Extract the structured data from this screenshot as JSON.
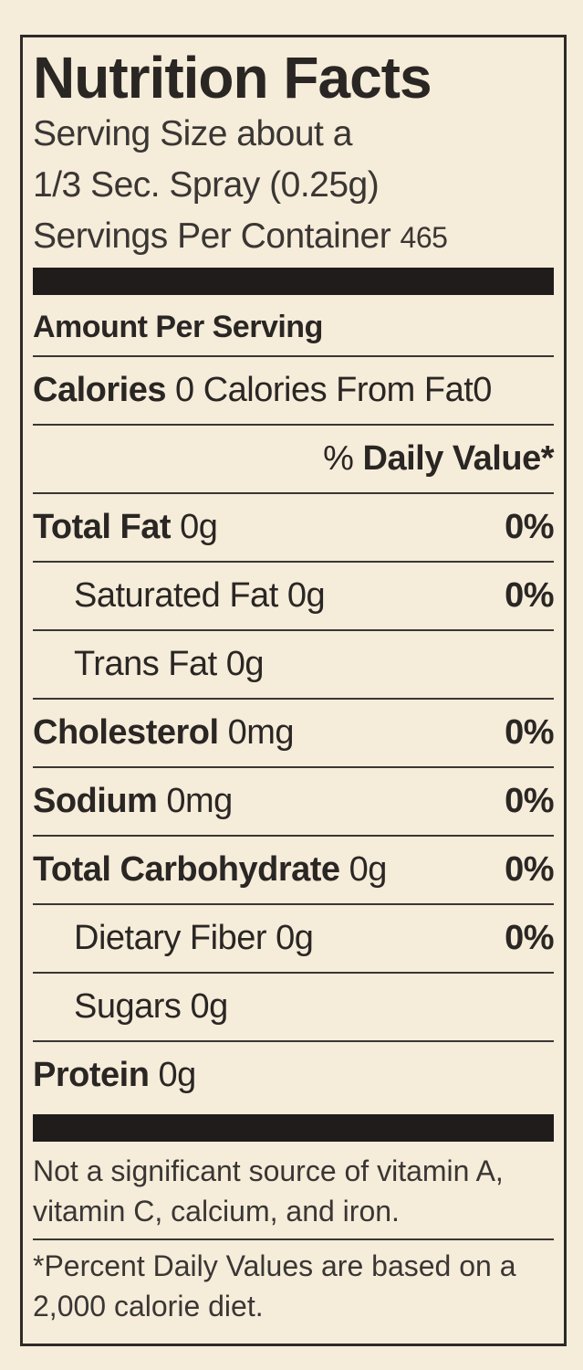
{
  "header": {
    "title": "Nutrition Facts",
    "serving_lines": [
      "Serving Size about a",
      "1/3 Sec. Spray (0.25g)"
    ],
    "servings_label": "Servings Per Container",
    "servings_value": "465"
  },
  "amount_per_serving": "Amount Per Serving",
  "calories": {
    "label": "Calories",
    "value": "0",
    "from_fat_label": "Calories From Fat",
    "from_fat_value": "0"
  },
  "daily_value_header": {
    "percent": "%",
    "label": "Daily Value*"
  },
  "nutrients": [
    {
      "name": "Total Fat",
      "amount": "0g",
      "dv": "0%"
    },
    {
      "name": "Saturated Fat",
      "amount": "0g",
      "dv": "0%"
    },
    {
      "name": "Trans Fat",
      "amount": "0g"
    },
    {
      "name": "Cholesterol",
      "amount": "0mg",
      "dv": "0%"
    },
    {
      "name": "Sodium",
      "amount": "0mg",
      "dv": "0%"
    },
    {
      "name": "Total Carbohydrate",
      "amount": "0g",
      "dv": "0%"
    },
    {
      "name": "Dietary Fiber",
      "amount": "0g",
      "dv": "0%"
    },
    {
      "name": "Sugars",
      "amount": "0g"
    },
    {
      "name": "Protein",
      "amount": "0g"
    }
  ],
  "footnotes": [
    "Not a significant source of vitamin A, vitamin C, calcium, and iron.",
    "*Percent Daily Values are based on a 2,000 calorie diet."
  ]
}
